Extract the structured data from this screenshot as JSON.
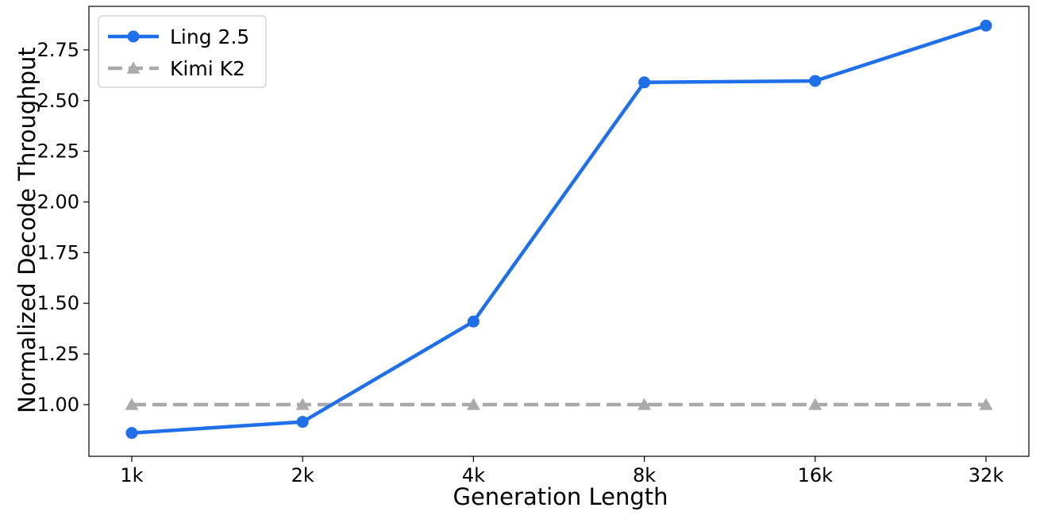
{
  "chart_data": {
    "type": "line",
    "categories": [
      "1k",
      "2k",
      "4k",
      "8k",
      "16k",
      "32k"
    ],
    "series": [
      {
        "name": "Ling 2.5",
        "values": [
          0.86,
          0.915,
          1.41,
          2.59,
          2.597,
          2.87
        ],
        "color": "#1f6fe8",
        "marker": "circle",
        "style": "solid"
      },
      {
        "name": "Kimi K2",
        "values": [
          1.0,
          1.0,
          1.0,
          1.0,
          1.0,
          1.0
        ],
        "color": "#aaaaaa",
        "marker": "triangle",
        "style": "dashed"
      }
    ],
    "xlabel": "Generation Length",
    "ylabel": "Normalized Decode Throughput",
    "ylim": [
      0.745,
      2.965
    ],
    "yticks": [
      1.0,
      1.25,
      1.5,
      1.75,
      2.0,
      2.25,
      2.5,
      2.75
    ],
    "ytick_labels": [
      "1.00",
      "1.25",
      "1.50",
      "1.75",
      "2.00",
      "2.25",
      "2.50",
      "2.75"
    ],
    "grid": false,
    "legend_position": "top-left"
  }
}
